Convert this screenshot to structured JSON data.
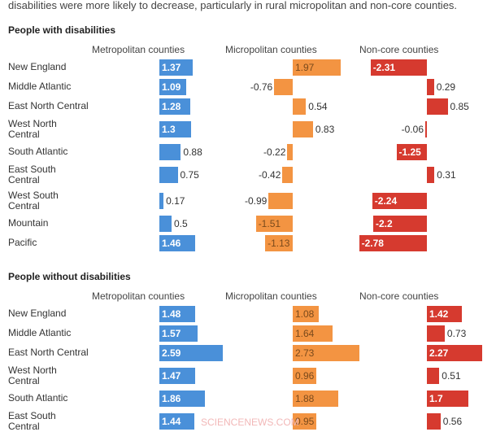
{
  "intro_text": "disabilities were more likely to decrease, particularly in rural micropolitan and non-core counties.",
  "watermark": "SCIENCENEWS.COM",
  "colors": {
    "metro": "#4a90d9",
    "micro": "#f39442",
    "noncore": "#d63a2f"
  },
  "chart_data": {
    "type": "bar",
    "orientation": "horizontal",
    "columns": [
      "Metropolitan counties",
      "Micropolitan counties",
      "Non-core counties"
    ],
    "panels": [
      {
        "title": "People with disabilities",
        "categories": [
          "New England",
          "Middle Atlantic",
          "East North Central",
          "West North Central",
          "South Atlantic",
          "East South Central",
          "West South Central",
          "Mountain",
          "Pacific"
        ],
        "series": [
          {
            "name": "Metropolitan counties",
            "values": [
              1.37,
              1.09,
              1.28,
              1.3,
              0.88,
              0.75,
              0.17,
              0.5,
              1.46
            ]
          },
          {
            "name": "Micropolitan counties",
            "values": [
              1.97,
              -0.76,
              0.54,
              0.83,
              -0.22,
              -0.42,
              -0.99,
              -1.51,
              -1.13
            ]
          },
          {
            "name": "Non-core counties",
            "values": [
              -2.31,
              0.29,
              0.85,
              -0.06,
              -1.25,
              0.31,
              -2.24,
              -2.2,
              -2.78
            ]
          }
        ]
      },
      {
        "title": "People without disabilities",
        "categories": [
          "New England",
          "Middle Atlantic",
          "East North Central",
          "West North Central",
          "South Atlantic",
          "East South Central"
        ],
        "series": [
          {
            "name": "Metropolitan counties",
            "values": [
              1.48,
              1.57,
              2.59,
              1.47,
              1.86,
              1.44
            ]
          },
          {
            "name": "Micropolitan counties",
            "values": [
              1.08,
              1.64,
              2.73,
              0.96,
              1.88,
              0.95
            ]
          },
          {
            "name": "Non-core counties",
            "values": [
              1.42,
              0.73,
              2.27,
              0.51,
              1.7,
              0.56
            ]
          }
        ]
      }
    ]
  }
}
